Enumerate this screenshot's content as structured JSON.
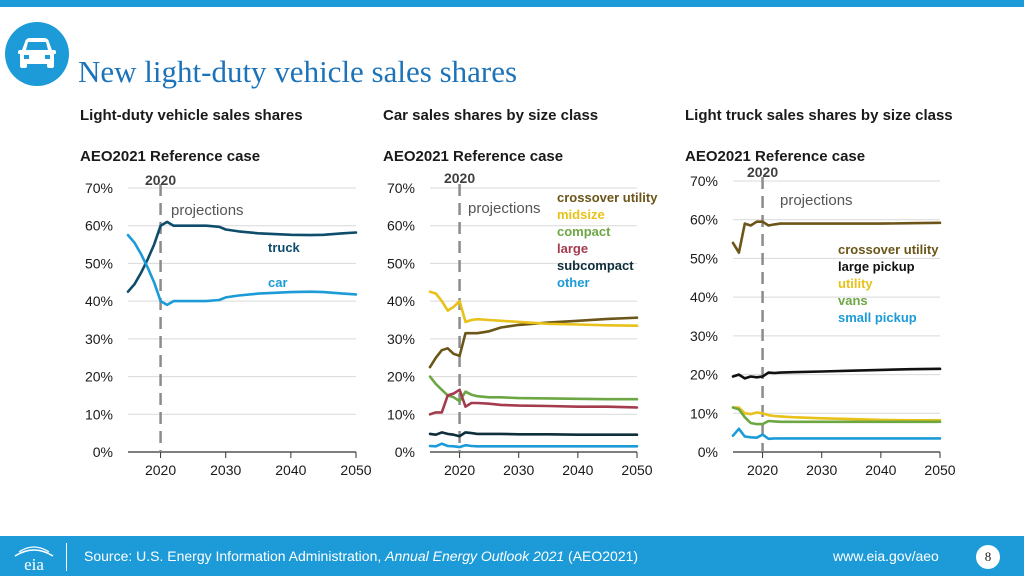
{
  "page": {
    "title": "New light-duty vehicle sales shares",
    "footer": {
      "source_prefix": "Source: U.S. Energy Information Administration, ",
      "source_italic": "Annual Energy Outlook 2021",
      "source_suffix": " (AEO2021)",
      "url": "www.eia.gov/aeo",
      "page_number": "8",
      "logo_text": "eia"
    },
    "icons": {
      "header": "car-icon",
      "footer": "eia-logo"
    },
    "colors": {
      "brand": "#1c9bd8",
      "title": "#1d73b9"
    }
  },
  "chart_data": [
    {
      "type": "line",
      "panel_title": "Light-duty vehicle sales shares",
      "subtitle": "AEO2021 Reference case",
      "marker_label": "2020",
      "projection_label": "projections",
      "ylim": [
        0,
        70
      ],
      "xlim": [
        2015,
        2050
      ],
      "yticks": [
        0,
        10,
        20,
        30,
        40,
        50,
        60,
        70
      ],
      "ytick_labels": [
        "0%",
        "10%",
        "20%",
        "30%",
        "40%",
        "50%",
        "60%",
        "70%"
      ],
      "xticks": [
        2020,
        2030,
        2040,
        2050
      ],
      "xtick_labels": [
        "2020",
        "2030",
        "2040",
        "2050"
      ],
      "legend": "inline",
      "series": [
        {
          "name": "truck",
          "color": "#0d4d6b",
          "x": [
            2015,
            2016,
            2017,
            2018,
            2019,
            2020,
            2021,
            2022,
            2023,
            2025,
            2027,
            2029,
            2030,
            2032,
            2035,
            2040,
            2043,
            2045,
            2048,
            2050
          ],
          "values": [
            42.5,
            44.5,
            47.5,
            51,
            55,
            60,
            61,
            60,
            60,
            60,
            60,
            59.7,
            59,
            58.5,
            58,
            57.6,
            57.5,
            57.6,
            58,
            58.2
          ]
        },
        {
          "name": "car",
          "color": "#1c9bd8",
          "x": [
            2015,
            2016,
            2017,
            2018,
            2019,
            2020,
            2021,
            2022,
            2023,
            2025,
            2027,
            2029,
            2030,
            2032,
            2035,
            2040,
            2043,
            2045,
            2048,
            2050
          ],
          "values": [
            57.5,
            55.5,
            52.5,
            49,
            45,
            40,
            39,
            40,
            40,
            40,
            40,
            40.3,
            41,
            41.5,
            42,
            42.4,
            42.5,
            42.4,
            42,
            41.8
          ]
        }
      ]
    },
    {
      "type": "line",
      "panel_title": "Car sales shares by size class",
      "subtitle": "AEO2021 Reference case",
      "marker_label": "2020",
      "projection_label": "projections",
      "ylim": [
        0,
        70
      ],
      "xlim": [
        2015,
        2050
      ],
      "yticks": [
        0,
        10,
        20,
        30,
        40,
        50,
        60,
        70
      ],
      "ytick_labels": [
        "0%",
        "10%",
        "20%",
        "30%",
        "40%",
        "50%",
        "60%",
        "70%"
      ],
      "xticks": [
        2020,
        2030,
        2040,
        2050
      ],
      "xtick_labels": [
        "2020",
        "2030",
        "2040",
        "2050"
      ],
      "legend": "top-right",
      "series": [
        {
          "name": "crossover utility",
          "color": "#6b5518",
          "x": [
            2015,
            2016,
            2017,
            2018,
            2019,
            2020,
            2021,
            2022,
            2023,
            2025,
            2027,
            2030,
            2035,
            2040,
            2045,
            2050
          ],
          "values": [
            22.5,
            25,
            27,
            27.5,
            26,
            25.5,
            31.5,
            31.5,
            31.5,
            32,
            33,
            33.7,
            34.3,
            34.8,
            35.3,
            35.6
          ]
        },
        {
          "name": "midsize",
          "color": "#e8c21a",
          "x": [
            2015,
            2016,
            2017,
            2018,
            2019,
            2020,
            2021,
            2022,
            2023,
            2025,
            2027,
            2030,
            2035,
            2040,
            2045,
            2050
          ],
          "values": [
            42.5,
            42,
            40,
            37.5,
            38.5,
            40,
            34.5,
            35,
            35.2,
            35,
            34.8,
            34.5,
            34,
            33.8,
            33.6,
            33.5
          ]
        },
        {
          "name": "compact",
          "color": "#6ca744",
          "x": [
            2015,
            2016,
            2017,
            2018,
            2019,
            2020,
            2021,
            2022,
            2023,
            2025,
            2027,
            2030,
            2035,
            2040,
            2045,
            2050
          ],
          "values": [
            20,
            18,
            16.5,
            15,
            14.5,
            13.5,
            16,
            15.2,
            14.8,
            14.5,
            14.5,
            14.3,
            14.2,
            14.1,
            14,
            14
          ]
        },
        {
          "name": "large",
          "color": "#a43c4e",
          "x": [
            2015,
            2016,
            2017,
            2018,
            2019,
            2020,
            2021,
            2022,
            2023,
            2025,
            2027,
            2030,
            2035,
            2040,
            2045,
            2050
          ],
          "values": [
            10,
            10.5,
            10.5,
            15,
            15.5,
            16.5,
            12,
            13,
            13,
            12.8,
            12.5,
            12.3,
            12.2,
            12,
            12,
            11.8
          ]
        },
        {
          "name": "subcompact",
          "color": "#0e2e3b",
          "x": [
            2015,
            2016,
            2017,
            2018,
            2019,
            2020,
            2021,
            2022,
            2023,
            2025,
            2027,
            2030,
            2035,
            2040,
            2045,
            2050
          ],
          "values": [
            4.8,
            4.6,
            5.2,
            4.8,
            4.6,
            4.2,
            5.2,
            5,
            4.8,
            4.8,
            4.8,
            4.7,
            4.7,
            4.6,
            4.6,
            4.6
          ]
        },
        {
          "name": "other",
          "color": "#1c9bd8",
          "x": [
            2015,
            2016,
            2017,
            2018,
            2019,
            2020,
            2021,
            2022,
            2023,
            2025,
            2027,
            2030,
            2035,
            2040,
            2045,
            2050
          ],
          "values": [
            1.6,
            1.5,
            2.2,
            1.6,
            1.5,
            1.3,
            1.8,
            1.6,
            1.5,
            1.5,
            1.5,
            1.5,
            1.5,
            1.5,
            1.5,
            1.5
          ]
        }
      ]
    },
    {
      "type": "line",
      "panel_title": "Light truck sales shares by size class",
      "subtitle": "AEO2021 Reference case",
      "marker_label": "2020",
      "projection_label": "projections",
      "ylim": [
        0,
        70
      ],
      "xlim": [
        2015,
        2050
      ],
      "yticks": [
        0,
        10,
        20,
        30,
        40,
        50,
        60,
        70
      ],
      "ytick_labels": [
        "0%",
        "10%",
        "20%",
        "30%",
        "40%",
        "50%",
        "60%",
        "70%"
      ],
      "xticks": [
        2020,
        2030,
        2040,
        2050
      ],
      "xtick_labels": [
        "2020",
        "2030",
        "2040",
        "2050"
      ],
      "legend": "right",
      "series": [
        {
          "name": "crossover utility",
          "color": "#6b5518",
          "x": [
            2015,
            2016,
            2017,
            2018,
            2019,
            2020,
            2021,
            2022,
            2023,
            2025,
            2030,
            2035,
            2040,
            2045,
            2050
          ],
          "values": [
            54,
            51.5,
            59,
            58.5,
            59.5,
            59.5,
            58.5,
            58.8,
            59,
            59,
            59,
            59,
            59,
            59.1,
            59.2
          ]
        },
        {
          "name": "large pickup",
          "color": "#111111",
          "x": [
            2015,
            2016,
            2017,
            2018,
            2019,
            2020,
            2021,
            2022,
            2023,
            2025,
            2030,
            2035,
            2040,
            2045,
            2050
          ],
          "values": [
            19.5,
            20,
            19,
            19.5,
            19.3,
            19.5,
            20.5,
            20.4,
            20.5,
            20.6,
            20.8,
            21,
            21.2,
            21.4,
            21.5
          ]
        },
        {
          "name": "utility",
          "color": "#e8c21a",
          "x": [
            2015,
            2016,
            2017,
            2018,
            2019,
            2020,
            2021,
            2022,
            2023,
            2025,
            2030,
            2035,
            2040,
            2045,
            2050
          ],
          "values": [
            11.5,
            11.5,
            10,
            9.8,
            10.2,
            10,
            9.5,
            9.3,
            9.2,
            9,
            8.7,
            8.5,
            8.3,
            8.2,
            8.2
          ]
        },
        {
          "name": "vans",
          "color": "#6ca744",
          "x": [
            2015,
            2016,
            2017,
            2018,
            2019,
            2020,
            2021,
            2022,
            2023,
            2025,
            2030,
            2035,
            2040,
            2045,
            2050
          ],
          "values": [
            11.5,
            11,
            9,
            7.5,
            7.2,
            7.2,
            8,
            7.9,
            7.8,
            7.8,
            7.8,
            7.8,
            7.8,
            7.8,
            7.8
          ]
        },
        {
          "name": "small pickup",
          "color": "#1c9bd8",
          "x": [
            2015,
            2016,
            2017,
            2018,
            2019,
            2020,
            2021,
            2022,
            2023,
            2025,
            2030,
            2035,
            2040,
            2045,
            2050
          ],
          "values": [
            4.2,
            6,
            4,
            3.8,
            3.7,
            4.5,
            3.4,
            3.5,
            3.5,
            3.5,
            3.5,
            3.5,
            3.5,
            3.5,
            3.5
          ]
        }
      ]
    }
  ]
}
